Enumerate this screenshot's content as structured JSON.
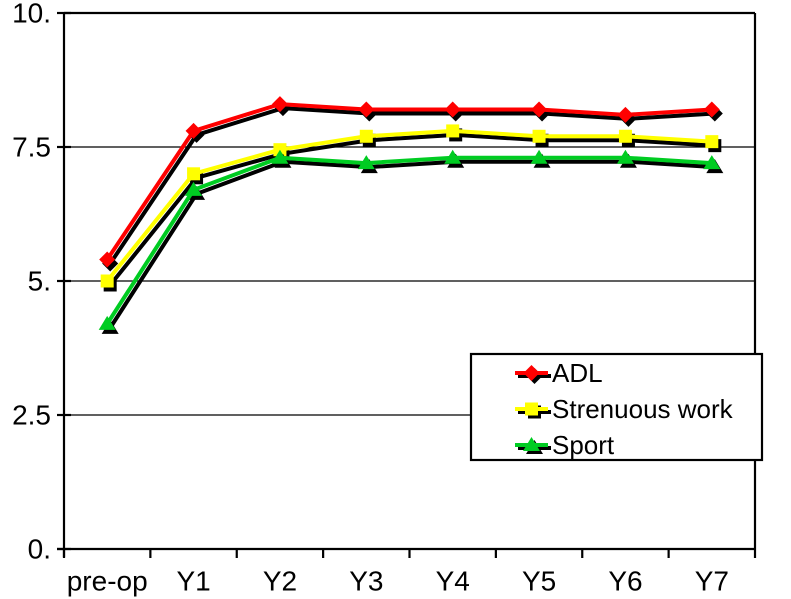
{
  "page": {
    "background": "#ffffff"
  },
  "chart_data": {
    "type": "line",
    "title": "",
    "xlabel": "",
    "ylabel": "",
    "categories": [
      "pre-op",
      "Y1",
      "Y2",
      "Y3",
      "Y4",
      "Y5",
      "Y6",
      "Y7"
    ],
    "series": [
      {
        "name": "ADL",
        "color": "#ff0000",
        "marker": "diamond",
        "values": [
          5.4,
          7.8,
          8.3,
          8.2,
          8.2,
          8.2,
          8.1,
          8.2
        ]
      },
      {
        "name": "Strenuous work",
        "color": "#ffff00",
        "marker": "square",
        "values": [
          5.0,
          7.0,
          7.45,
          7.7,
          7.8,
          7.7,
          7.7,
          7.6
        ]
      },
      {
        "name": "Sport",
        "color": "#00cc22",
        "marker": "triangle",
        "values": [
          4.2,
          6.7,
          7.3,
          7.2,
          7.3,
          7.3,
          7.3,
          7.2
        ]
      }
    ],
    "ylim": [
      0,
      10
    ],
    "y_ticks": [
      {
        "value": 0,
        "label": "0."
      },
      {
        "value": 2.5,
        "label": "2.5"
      },
      {
        "value": 5,
        "label": "5."
      },
      {
        "value": 7.5,
        "label": "7.5"
      },
      {
        "value": 10,
        "label": "10."
      }
    ],
    "grid": "horizontal",
    "gridline_color": "#000000",
    "axis_color": "#000000",
    "line_shadow": true,
    "shadow_color": "#000000",
    "legend": {
      "position": "inside-bottom-right",
      "border_color": "#000000",
      "background": "#ffffff",
      "entries": [
        "ADL",
        "Strenuous work",
        "Sport"
      ]
    }
  }
}
